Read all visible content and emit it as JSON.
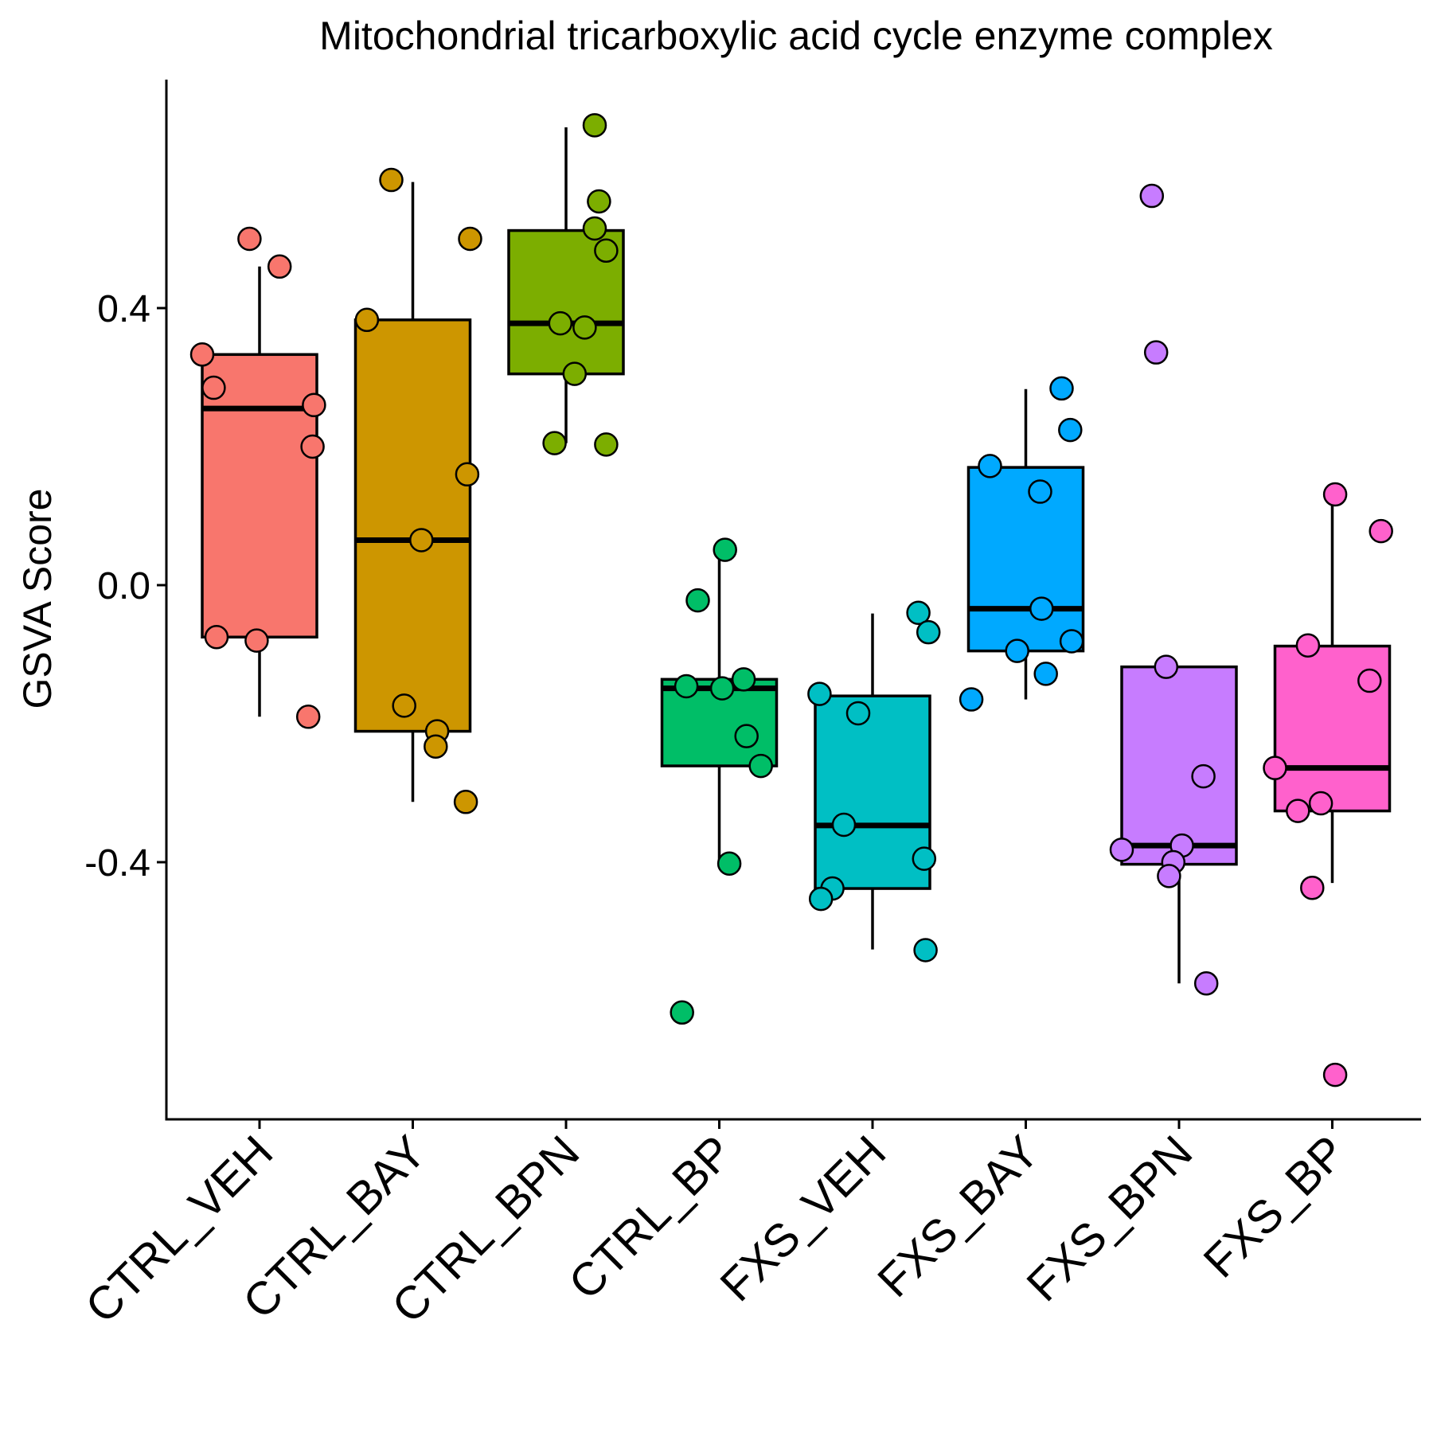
{
  "chart_data": {
    "type": "box",
    "title": "Mitochondrial tricarboxylic acid cycle enzyme complex",
    "xlabel": "",
    "ylabel": "GSVA Score",
    "ylim": [
      -0.77,
      0.73
    ],
    "yticks": [
      -0.4,
      0.0,
      0.4
    ],
    "ytick_labels": [
      "-0.4",
      "0.0",
      "0.4"
    ],
    "grid": false,
    "legend": "none",
    "categories": [
      "CTRL_VEH",
      "CTRL_BAY",
      "CTRL_BPN",
      "CTRL_BP",
      "FXS_VEH",
      "FXS_BAY",
      "FXS_BPN",
      "FXS_BP"
    ],
    "colors": [
      "#F8766D",
      "#CD9600",
      "#7CAE00",
      "#00BE67",
      "#00BFC4",
      "#00A9FF",
      "#C77CFF",
      "#FF61CC"
    ],
    "boxes": [
      {
        "category": "CTRL_VEH",
        "q1": -0.075,
        "median": 0.255,
        "q3": 0.333,
        "whisker_low": -0.19,
        "whisker_high": 0.46
      },
      {
        "category": "CTRL_BAY",
        "q1": -0.211,
        "median": 0.065,
        "q3": 0.383,
        "whisker_low": -0.313,
        "whisker_high": 0.582
      },
      {
        "category": "CTRL_BPN",
        "q1": 0.305,
        "median": 0.378,
        "q3": 0.512,
        "whisker_low": 0.205,
        "whisker_high": 0.661
      },
      {
        "category": "CTRL_BP",
        "q1": -0.261,
        "median": -0.149,
        "q3": -0.136,
        "whisker_low": -0.405,
        "whisker_high": 0.042
      },
      {
        "category": "FXS_VEH",
        "q1": -0.438,
        "median": -0.347,
        "q3": -0.16,
        "whisker_low": -0.526,
        "whisker_high": -0.041
      },
      {
        "category": "FXS_BAY",
        "q1": -0.095,
        "median": -0.034,
        "q3": 0.17,
        "whisker_low": -0.165,
        "whisker_high": 0.283
      },
      {
        "category": "FXS_BPN",
        "q1": -0.403,
        "median": -0.376,
        "q3": -0.118,
        "whisker_low": -0.575,
        "whisker_high": -0.118
      },
      {
        "category": "FXS_BP",
        "q1": -0.326,
        "median": -0.264,
        "q3": -0.088,
        "whisker_low": -0.43,
        "whisker_high": 0.13
      }
    ],
    "points": [
      {
        "category": "CTRL_VEH",
        "values": [
          0.5,
          0.46,
          0.333,
          0.285,
          0.26,
          0.2,
          -0.075,
          -0.08,
          -0.19
        ]
      },
      {
        "category": "CTRL_BAY",
        "values": [
          0.585,
          0.5,
          0.383,
          0.16,
          0.065,
          -0.174,
          -0.211,
          -0.233,
          -0.313
        ]
      },
      {
        "category": "CTRL_BPN",
        "values": [
          0.664,
          0.554,
          0.515,
          0.483,
          0.378,
          0.372,
          0.305,
          0.205,
          0.203
        ]
      },
      {
        "category": "CTRL_BP",
        "values": [
          0.051,
          -0.022,
          -0.136,
          -0.146,
          -0.149,
          -0.218,
          -0.261,
          -0.402,
          -0.617
        ]
      },
      {
        "category": "FXS_VEH",
        "values": [
          -0.04,
          -0.068,
          -0.157,
          -0.185,
          -0.346,
          -0.395,
          -0.438,
          -0.453,
          -0.527
        ]
      },
      {
        "category": "FXS_BAY",
        "values": [
          0.284,
          0.224,
          0.172,
          0.135,
          -0.034,
          -0.081,
          -0.095,
          -0.128,
          -0.165
        ]
      },
      {
        "category": "FXS_BPN",
        "values": [
          0.562,
          0.336,
          -0.118,
          -0.276,
          -0.376,
          -0.382,
          -0.4,
          -0.42,
          -0.575
        ]
      },
      {
        "category": "FXS_BP",
        "values": [
          0.131,
          0.078,
          -0.087,
          -0.138,
          -0.264,
          -0.315,
          -0.326,
          -0.437,
          -0.707
        ]
      }
    ],
    "point_offsets": [
      [
        -0.07,
        0.14,
        -0.4,
        -0.32,
        0.38,
        0.37,
        -0.3,
        -0.02,
        0.34
      ],
      [
        -0.15,
        0.4,
        -0.32,
        0.38,
        0.06,
        -0.06,
        0.17,
        0.16,
        0.37
      ],
      [
        0.2,
        0.23,
        0.2,
        0.28,
        -0.04,
        0.13,
        0.06,
        -0.08,
        0.28
      ],
      [
        0.04,
        -0.15,
        0.17,
        -0.23,
        0.02,
        0.19,
        0.29,
        0.07,
        -0.26
      ],
      [
        0.32,
        0.39,
        -0.37,
        -0.1,
        -0.2,
        0.36,
        -0.28,
        -0.36,
        0.37
      ],
      [
        0.25,
        0.31,
        -0.25,
        0.1,
        0.11,
        0.32,
        -0.06,
        0.14,
        -0.38
      ],
      [
        -0.19,
        -0.16,
        -0.09,
        0.17,
        0.02,
        -0.4,
        -0.04,
        -0.07,
        0.19
      ],
      [
        0.02,
        0.34,
        -0.17,
        0.26,
        -0.4,
        -0.08,
        -0.24,
        -0.14,
        0.02
      ]
    ]
  }
}
